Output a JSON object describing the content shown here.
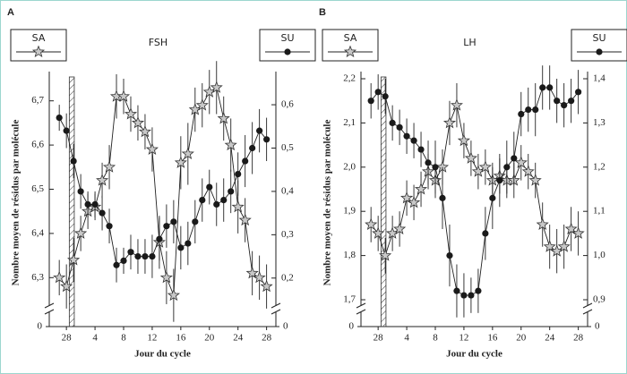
{
  "chart_data": [
    {
      "type": "line",
      "panel": "A",
      "title": "FSH",
      "xlabel": "Jour du cycle",
      "ylabel": "Nombre moyen de résidus par molécule",
      "x": [
        -1,
        0,
        1,
        2,
        3,
        4,
        5,
        6,
        7,
        8,
        9,
        10,
        11,
        12,
        13,
        14,
        15,
        16,
        17,
        18,
        19,
        20,
        21,
        22,
        23,
        24,
        25,
        26,
        27,
        28
      ],
      "xlim": [
        -2.4,
        29.3
      ],
      "xticks": [
        {
          "value": 0,
          "label": "28"
        },
        4,
        8,
        12,
        16,
        20,
        24,
        28
      ],
      "ylim": [
        6.25,
        6.75
      ],
      "yticks": [
        {
          "value": 6.3,
          "label": "6,3"
        },
        {
          "value": 6.4,
          "label": "6,4"
        },
        {
          "value": 6.5,
          "label": "6,5"
        },
        {
          "value": 6.6,
          "label": "6,6"
        },
        {
          "value": 6.7,
          "label": "6,7"
        }
      ],
      "y2lim": [
        0.15,
        0.66
      ],
      "y2ticks": [
        {
          "value": 0.2,
          "label": "0,2"
        },
        {
          "value": 0.3,
          "label": "0,3"
        },
        {
          "value": 0.4,
          "label": "0,4"
        },
        {
          "value": 0.5,
          "label": "0,5"
        },
        {
          "value": 0.6,
          "label": "0,6"
        }
      ],
      "ybreak": 0,
      "y2break": 0,
      "series": [
        {
          "name": "SA",
          "marker": "star",
          "color": "#c8c8c8",
          "legend": "upper left",
          "values": [
            6.3,
            6.28,
            6.34,
            6.4,
            6.45,
            6.46,
            6.52,
            6.55,
            6.71,
            6.71,
            6.67,
            6.65,
            6.63,
            6.59,
            6.38,
            6.3,
            6.26,
            6.56,
            6.58,
            6.68,
            6.69,
            6.72,
            6.73,
            6.66,
            6.6,
            6.46,
            6.43,
            6.31,
            6.3,
            6.28
          ],
          "errors": [
            0.04,
            0.05,
            0.05,
            0.04,
            0.04,
            0.03,
            0.04,
            0.05,
            0.05,
            0.04,
            0.04,
            0.04,
            0.04,
            0.05,
            0.06,
            0.06,
            0.06,
            0.06,
            0.07,
            0.05,
            0.05,
            0.05,
            0.06,
            0.05,
            0.06,
            0.06,
            0.05,
            0.05,
            0.05,
            0.05
          ]
        },
        {
          "name": "SU",
          "marker": "circle",
          "color": "#1a1a1a",
          "legend": "upper right",
          "axis": "y2",
          "values": [
            0.57,
            0.54,
            0.47,
            0.4,
            0.37,
            0.37,
            0.35,
            0.32,
            0.23,
            0.24,
            0.26,
            0.25,
            0.25,
            0.25,
            0.29,
            0.32,
            0.33,
            0.27,
            0.28,
            0.33,
            0.38,
            0.41,
            0.37,
            0.38,
            0.4,
            0.44,
            0.47,
            0.5,
            0.54,
            0.52
          ],
          "errors": [
            0.03,
            0.04,
            0.04,
            0.04,
            0.03,
            0.03,
            0.04,
            0.04,
            0.04,
            0.03,
            0.04,
            0.04,
            0.04,
            0.05,
            0.05,
            0.05,
            0.05,
            0.05,
            0.05,
            0.05,
            0.05,
            0.04,
            0.05,
            0.05,
            0.05,
            0.05,
            0.06,
            0.06,
            0.05,
            0.05
          ]
        }
      ]
    },
    {
      "type": "line",
      "panel": "B",
      "title": "LH",
      "xlabel": "Jour du cycle",
      "ylabel": "Nombre moyen de résidus par molécule",
      "x": [
        -1,
        0,
        1,
        2,
        3,
        4,
        5,
        6,
        7,
        8,
        9,
        10,
        11,
        12,
        13,
        14,
        15,
        16,
        17,
        18,
        19,
        20,
        21,
        22,
        23,
        24,
        25,
        26,
        27,
        28
      ],
      "xlim": [
        -2.4,
        29.3
      ],
      "xticks": [
        {
          "value": 0,
          "label": "28"
        },
        4,
        8,
        12,
        16,
        20,
        24,
        28
      ],
      "ylim": [
        1.7,
        2.2
      ],
      "yticks": [
        {
          "value": 1.7,
          "label": "1,7"
        },
        {
          "value": 1.8,
          "label": "1,8"
        },
        {
          "value": 1.9,
          "label": "1,9"
        },
        {
          "value": 2.0,
          "label": "2,0"
        },
        {
          "value": 2.1,
          "label": "2,1"
        },
        {
          "value": 2.2,
          "label": "2,2"
        }
      ],
      "y2lim": [
        0.9,
        1.4
      ],
      "y2ticks": [
        {
          "value": 0.9,
          "label": "0,9"
        },
        {
          "value": 1.0,
          "label": "1,0"
        },
        {
          "value": 1.1,
          "label": "1,1"
        },
        {
          "value": 1.2,
          "label": "1,2"
        },
        {
          "value": 1.3,
          "label": "1,3"
        },
        {
          "value": 1.4,
          "label": "1,4"
        }
      ],
      "ybreak": 0,
      "y2break": 0,
      "series": [
        {
          "name": "SA",
          "marker": "star",
          "color": "#c8c8c8",
          "legend": "upper left",
          "values": [
            1.87,
            1.85,
            1.8,
            1.85,
            1.86,
            1.93,
            1.92,
            1.95,
            1.99,
            1.97,
            2.0,
            2.1,
            2.14,
            2.06,
            2.02,
            1.99,
            2.0,
            1.97,
            1.98,
            1.97,
            1.97,
            2.01,
            1.99,
            1.97,
            1.87,
            1.82,
            1.81,
            1.82,
            1.86,
            1.85
          ],
          "errors": [
            0.04,
            0.04,
            0.04,
            0.04,
            0.04,
            0.04,
            0.04,
            0.04,
            0.04,
            0.04,
            0.04,
            0.05,
            0.05,
            0.04,
            0.04,
            0.04,
            0.04,
            0.04,
            0.04,
            0.04,
            0.04,
            0.04,
            0.04,
            0.04,
            0.05,
            0.05,
            0.05,
            0.05,
            0.05,
            0.05
          ]
        },
        {
          "name": "SU",
          "marker": "circle",
          "color": "#1a1a1a",
          "legend": "upper right",
          "axis": "y2",
          "values": [
            1.35,
            1.37,
            1.36,
            1.3,
            1.29,
            1.27,
            1.26,
            1.24,
            1.21,
            1.2,
            1.13,
            1.0,
            0.92,
            0.91,
            0.91,
            0.92,
            1.05,
            1.13,
            1.17,
            1.2,
            1.22,
            1.32,
            1.33,
            1.33,
            1.38,
            1.38,
            1.35,
            1.34,
            1.35,
            1.37
          ],
          "errors": [
            0.04,
            0.04,
            0.04,
            0.04,
            0.04,
            0.04,
            0.04,
            0.04,
            0.05,
            0.06,
            0.07,
            0.07,
            0.06,
            0.05,
            0.04,
            0.05,
            0.06,
            0.07,
            0.06,
            0.06,
            0.06,
            0.05,
            0.05,
            0.06,
            0.05,
            0.05,
            0.05,
            0.05,
            0.05,
            0.05
          ]
        }
      ]
    }
  ]
}
